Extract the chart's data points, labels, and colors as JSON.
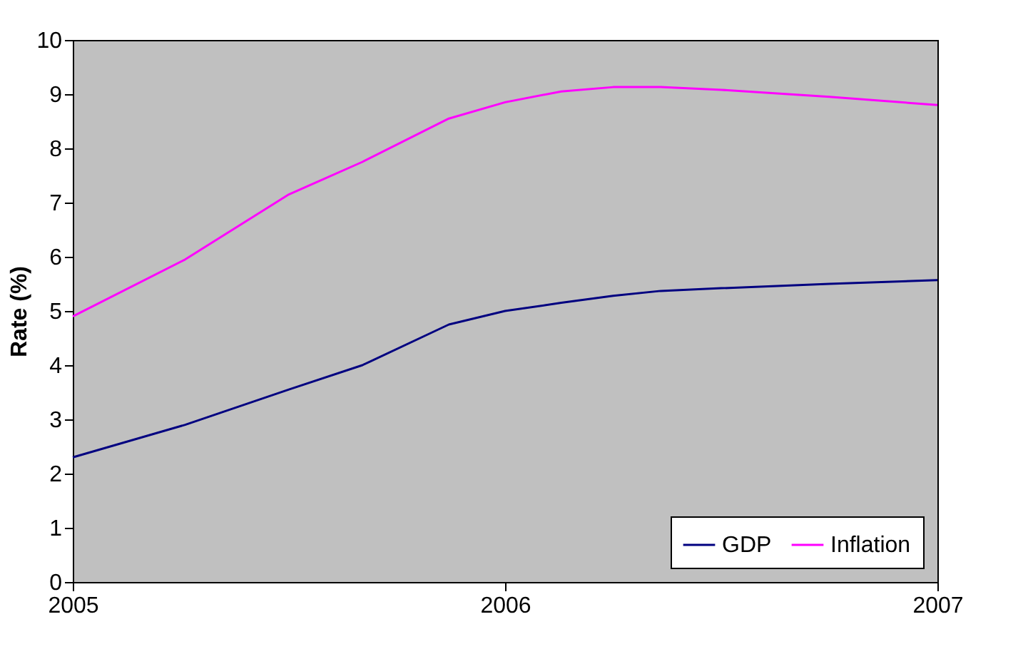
{
  "chart_data": {
    "type": "line",
    "ylabel": "Rate (%)",
    "xlim": [
      2005,
      2007
    ],
    "xticks": [
      2005,
      2006,
      2007
    ],
    "ylim": [
      0,
      10
    ],
    "yticks": [
      0,
      1,
      2,
      3,
      4,
      5,
      6,
      7,
      8,
      9,
      10
    ],
    "grid": false,
    "legend": "bottom right",
    "marker": "none",
    "line_style": "solid",
    "x": [
      2005,
      2005.26,
      2005.5,
      2005.67,
      2005.87,
      2006,
      2006.13,
      2006.25,
      2006.36,
      2006.5,
      2006.75,
      2007
    ],
    "series": [
      {
        "name": "GDP",
        "color": "#000080",
        "values": [
          2.3,
          2.9,
          3.55,
          4.0,
          4.75,
          5.0,
          5.15,
          5.28,
          5.37,
          5.42,
          5.5,
          5.57
        ]
      },
      {
        "name": "Inflation",
        "color": "#ff00ff",
        "values": [
          4.9,
          5.95,
          7.15,
          7.75,
          8.55,
          8.85,
          9.05,
          9.13,
          9.13,
          9.08,
          8.95,
          8.8
        ]
      }
    ]
  }
}
